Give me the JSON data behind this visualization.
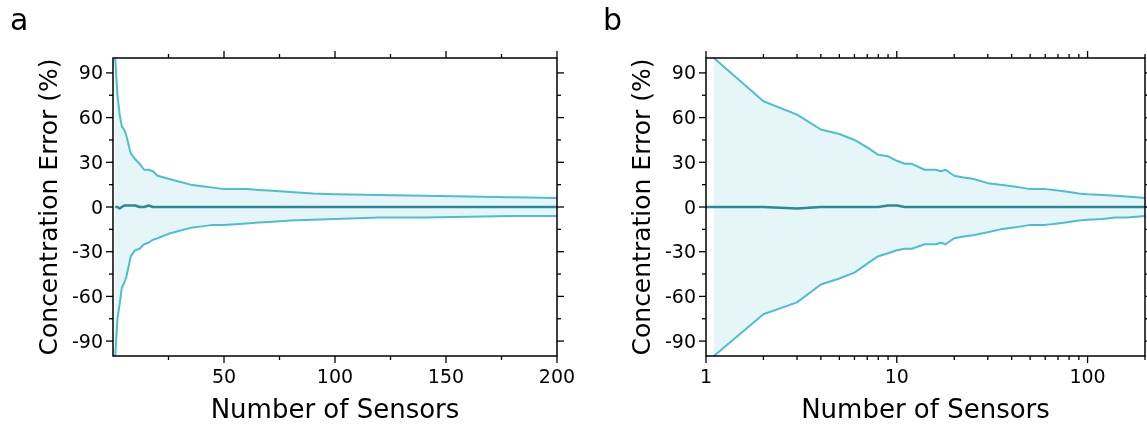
{
  "chart_data": [
    {
      "type": "line",
      "title": "a",
      "xlabel": "Number of Sensors",
      "ylabel": "Concentration Error (%)",
      "xlim": [
        0,
        200
      ],
      "ylim": [
        -100,
        100
      ],
      "xticks": [
        {
          "value": 25,
          "label": null
        },
        50,
        {
          "value": 75,
          "label": null
        },
        100,
        {
          "value": 125,
          "label": null
        },
        150,
        {
          "value": 175,
          "label": null
        },
        200
      ],
      "yticks": [
        -90,
        {
          "value": -75,
          "label": null
        },
        -60,
        {
          "value": -45,
          "label": null
        },
        -30,
        {
          "value": -15,
          "label": null
        },
        0,
        {
          "value": 15,
          "label": null
        },
        30,
        {
          "value": 45,
          "label": null
        },
        60,
        {
          "value": 75,
          "label": null
        },
        90
      ],
      "x": [
        1,
        2,
        3,
        4,
        5,
        6,
        7,
        8,
        9,
        10,
        12,
        14,
        16,
        18,
        20,
        25,
        30,
        35,
        40,
        45,
        50,
        60,
        70,
        80,
        90,
        100,
        120,
        140,
        160,
        180,
        200
      ],
      "series": [
        {
          "type": "area",
          "color": "#4bbfcf",
          "values": [
            100,
            75,
            62,
            54,
            52,
            48,
            42,
            36,
            34,
            32,
            29,
            25,
            25,
            24,
            21,
            19,
            17,
            15,
            14,
            13,
            12,
            12,
            11,
            10,
            9,
            8.5,
            8,
            7.5,
            7,
            6.5,
            6
          ]
        },
        {
          "type": "area",
          "color": "#4bbfcf",
          "values": [
            -100,
            -75,
            -65,
            -54,
            -51,
            -47,
            -40,
            -33,
            -31,
            -29,
            -28,
            -25,
            -24,
            -22,
            -21,
            -18,
            -16,
            -14,
            -13,
            -12,
            -12,
            -11,
            -10,
            -9,
            -8.5,
            -8,
            -7,
            -7,
            -6.5,
            -6,
            -6
          ]
        },
        {
          "type": "line",
          "color": "#2a8a99",
          "values": [
            0,
            0,
            -1,
            0,
            1,
            1,
            1,
            1,
            1,
            1,
            0,
            0,
            1,
            0,
            0,
            0,
            0,
            0,
            0,
            0,
            0,
            0,
            0,
            0,
            0,
            0,
            0,
            0,
            0,
            0,
            0
          ]
        }
      ]
    },
    {
      "type": "line",
      "title": "b",
      "xlabel": "Number of Sensors",
      "ylabel": "Concentration Error (%)",
      "log": "x",
      "xlim": [
        1,
        200
      ],
      "ylim": [
        -100,
        100
      ],
      "xticks": [
        1,
        {
          "value": 2,
          "label": null
        },
        {
          "value": 3,
          "label": null
        },
        {
          "value": 4,
          "label": null
        },
        {
          "value": 5,
          "label": null
        },
        {
          "value": 6,
          "label": null
        },
        {
          "value": 7,
          "label": null
        },
        {
          "value": 8,
          "label": null
        },
        {
          "value": 9,
          "label": null
        },
        10,
        {
          "value": 20,
          "label": null
        },
        {
          "value": 30,
          "label": null
        },
        {
          "value": 40,
          "label": null
        },
        {
          "value": 50,
          "label": null
        },
        {
          "value": 60,
          "label": null
        },
        {
          "value": 70,
          "label": null
        },
        {
          "value": 80,
          "label": null
        },
        {
          "value": 90,
          "label": null
        },
        100,
        {
          "value": 200,
          "label": null
        }
      ],
      "yticks": [
        -90,
        {
          "value": -75,
          "label": null
        },
        -60,
        {
          "value": -45,
          "label": null
        },
        -30,
        {
          "value": -15,
          "label": null
        },
        0,
        {
          "value": 15,
          "label": null
        },
        30,
        {
          "value": 45,
          "label": null
        },
        60,
        {
          "value": 75,
          "label": null
        },
        90
      ],
      "x": [
        1,
        1.1,
        2,
        3,
        4,
        5,
        6,
        7,
        8,
        9,
        10,
        11,
        12,
        14,
        16,
        17,
        18,
        20,
        22,
        25,
        30,
        35,
        40,
        45,
        50,
        60,
        70,
        80,
        90,
        100,
        120,
        140,
        160,
        180,
        200
      ],
      "series": [
        {
          "type": "area",
          "color": "#4bbfcf",
          "values": [
            null,
            100,
            71,
            62,
            52,
            49,
            45,
            40,
            35,
            34,
            31,
            29,
            29,
            25,
            25,
            24,
            25,
            21,
            20,
            19,
            16,
            15,
            14,
            13,
            12,
            12,
            11,
            10,
            9,
            8.5,
            8,
            7.5,
            7,
            6.5,
            6
          ]
        },
        {
          "type": "area",
          "color": "#4bbfcf",
          "values": [
            null,
            -100,
            -72,
            -64,
            -52,
            -48,
            -44,
            -38,
            -33,
            -31,
            -29,
            -28,
            -28,
            -25,
            -25,
            -24,
            -25,
            -21,
            -20,
            -19,
            -17,
            -15,
            -14,
            -13,
            -12,
            -12,
            -11,
            -10,
            -9,
            -8.5,
            -8,
            -7,
            -7,
            -6.5,
            -6
          ]
        },
        {
          "type": "line",
          "color": "#2a8a99",
          "values": [
            0,
            0,
            0,
            -1,
            0,
            0,
            0,
            0,
            0,
            1,
            1,
            0,
            0,
            0,
            0,
            0,
            0,
            0,
            0,
            0,
            0,
            0,
            0,
            0,
            0,
            0,
            0,
            0,
            0,
            0,
            0,
            0,
            0,
            0,
            0
          ]
        }
      ]
    }
  ]
}
